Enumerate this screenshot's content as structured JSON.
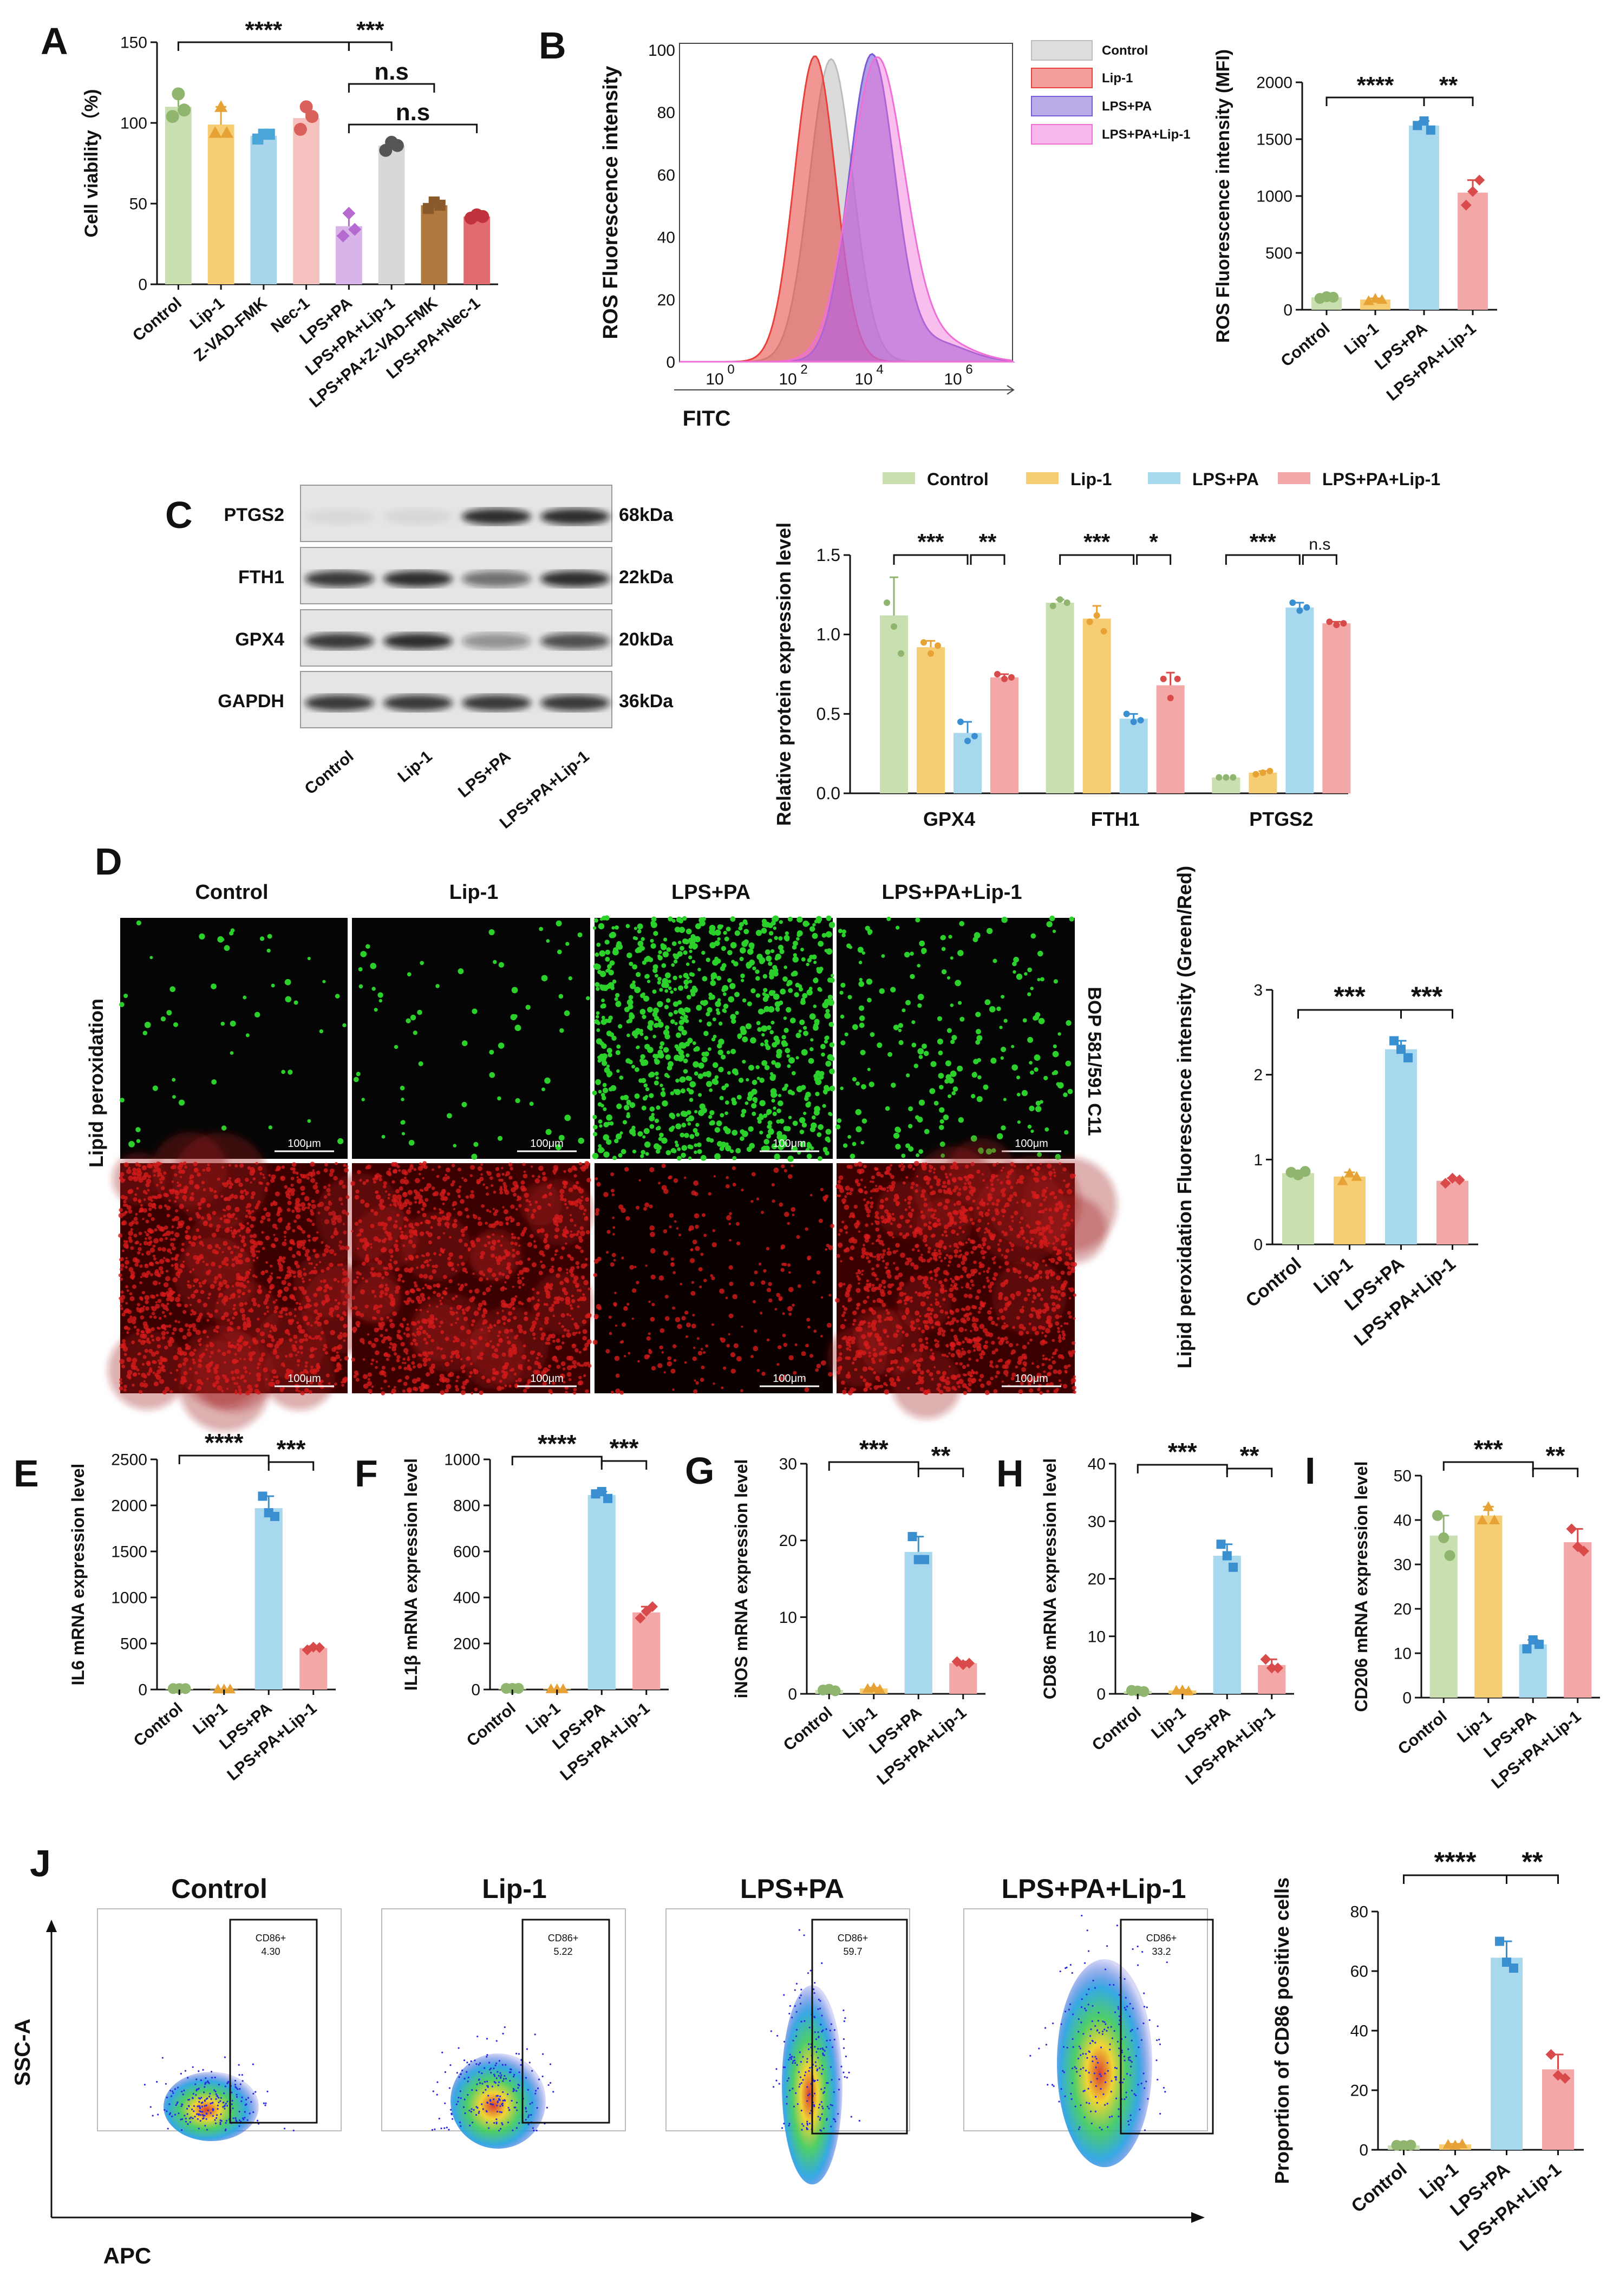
{
  "colors": {
    "control": "#c9dfb0",
    "control_dot": "#8fb56f",
    "lip1": "#f7cd73",
    "lip1_dot": "#e6a235",
    "lpspa": "#a8d8ee",
    "lpspa_dot": "#3a8fd0",
    "lpspalip": "#f4a7a7",
    "lpspalip_dot": "#d94b4b",
    "znec": "#a9d5ea",
    "nec": "#f6c2c0",
    "lip1_pos": "#d8d8d8",
    "zvad_pa": "#b07a3e",
    "nec_pa": "#e26b72",
    "hist_control": "#bdbdbd",
    "hist_lip1": "#e8403a",
    "hist_lpspa": "#7a5cd6",
    "hist_lpspalip": "#f06fd6",
    "green_fluor": "#2bd02b",
    "red_fluor": "#d61a1a"
  },
  "legend_c": [
    "Control",
    "Lip-1",
    "LPS+PA",
    "LPS+PA+Lip-1"
  ],
  "flow": {
    "titles": [
      "Control",
      "Lip-1",
      "LPS+PA",
      "LPS+PA+Lip-1"
    ],
    "gate_label": "CD86+",
    "values": [
      "4.30",
      "5.22",
      "59.7",
      "33.2"
    ],
    "ylabel": "SSC-A",
    "xlabel": "APC"
  },
  "micro": {
    "titles": [
      "Control",
      "Lip-1",
      "LPS+PA",
      "LPS+PA+Lip-1"
    ],
    "scale": "100μm",
    "side_left": "Lipid peroxidation",
    "side_right": "BOP 581/591 C11"
  },
  "blot": {
    "rows": [
      "PTGS2",
      "FTH1",
      "GPX4",
      "GAPDH"
    ],
    "kda": [
      "68kDa",
      "22kDa",
      "20kDa",
      "36kDa"
    ],
    "lanes": [
      "Control",
      "Lip-1",
      "LPS+PA",
      "LPS+PA+Lip-1"
    ]
  },
  "chart_data": [
    {
      "panel": "A",
      "type": "bar",
      "categories": [
        "Control",
        "Lip-1",
        "Z-VAD-FMK",
        "Nec-1",
        "LPS+PA",
        "LPS+PA+Lip-1",
        "LPS+PA+Z-VAD-FMK",
        "LPS+PA+Nec-1"
      ],
      "values": [
        110,
        99,
        92,
        103,
        36,
        86,
        49,
        42
      ],
      "points": [
        [
          104,
          118,
          108
        ],
        [
          94,
          110,
          94
        ],
        [
          90,
          93,
          93
        ],
        [
          96,
          110,
          104
        ],
        [
          30,
          44,
          34
        ],
        [
          83,
          88,
          86
        ],
        [
          47,
          51,
          49
        ],
        [
          41,
          43,
          42
        ]
      ],
      "ylabel": "Cell viability（%)",
      "ylim": [
        0,
        150
      ],
      "yticks": [
        0,
        50,
        100,
        150
      ],
      "sig": [
        {
          "from": 0,
          "to": 4,
          "label": "****"
        },
        {
          "from": 4,
          "to": 5,
          "label": "***"
        },
        {
          "from": 4,
          "to": 6,
          "label": "n.s"
        },
        {
          "from": 4,
          "to": 7,
          "label": "n.s"
        }
      ]
    },
    {
      "panel": "B-hist",
      "type": "area",
      "series": [
        {
          "name": "Control"
        },
        {
          "name": "Lip-1"
        },
        {
          "name": "LPS+PA"
        },
        {
          "name": "LPS+PA+Lip-1"
        }
      ],
      "ylabel": "ROS Fluorescence intensity",
      "xlabel": "FITC",
      "ylim": [
        0,
        100
      ],
      "yticks": [
        0,
        20,
        40,
        60,
        80,
        100
      ],
      "xticks": [
        "10^0",
        "10^2",
        "10^4",
        "10^6"
      ]
    },
    {
      "panel": "B",
      "type": "bar",
      "categories": [
        "Control",
        "Lip-1",
        "LPS+PA",
        "LPS+PA+Lip-1"
      ],
      "values": [
        110,
        90,
        1620,
        1030
      ],
      "points": [
        [
          100,
          115,
          110
        ],
        [
          80,
          100,
          90
        ],
        [
          1620,
          1660,
          1580
        ],
        [
          920,
          1040,
          1140
        ]
      ],
      "ylabel": "ROS Fluorescence intensity (MFI)",
      "ylim": [
        0,
        2000
      ],
      "yticks": [
        0,
        500,
        1000,
        1500,
        2000
      ],
      "sig": [
        {
          "from": 0,
          "to": 2,
          "label": "****"
        },
        {
          "from": 2,
          "to": 3,
          "label": "**"
        }
      ]
    },
    {
      "panel": "C",
      "type": "bar",
      "categories": [
        "GPX4",
        "FTH1",
        "PTGS2"
      ],
      "series": [
        {
          "name": "Control",
          "values": [
            1.12,
            1.2,
            0.1
          ],
          "points": [
            [
              1.2,
              1.05,
              0.88
            ],
            [
              1.18,
              1.22,
              1.2
            ],
            [
              0.1,
              0.1,
              0.1
            ]
          ]
        },
        {
          "name": "Lip-1",
          "values": [
            0.92,
            1.1,
            0.13
          ],
          "points": [
            [
              0.95,
              0.88,
              0.93
            ],
            [
              1.08,
              1.12,
              1.02
            ],
            [
              0.12,
              0.13,
              0.14
            ]
          ]
        },
        {
          "name": "LPS+PA",
          "values": [
            0.38,
            0.47,
            1.17
          ],
          "points": [
            [
              0.45,
              0.33,
              0.36
            ],
            [
              0.5,
              0.45,
              0.46
            ],
            [
              1.2,
              1.15,
              1.17
            ]
          ]
        },
        {
          "name": "LPS+PA+Lip-1",
          "values": [
            0.73,
            0.68,
            1.07
          ],
          "points": [
            [
              0.75,
              0.72,
              0.73
            ],
            [
              0.72,
              0.6,
              0.72
            ],
            [
              1.08,
              1.06,
              1.07
            ]
          ]
        }
      ],
      "ylabel": "Relative protein expression level",
      "ylim": [
        0,
        1.5
      ],
      "yticks": [
        0.0,
        0.5,
        1.0,
        1.5
      ],
      "sig": [
        [
          "***",
          "**"
        ],
        [
          "***",
          "*"
        ],
        [
          "***",
          "n.s"
        ]
      ]
    },
    {
      "panel": "D",
      "type": "bar",
      "categories": [
        "Control",
        "Lip-1",
        "LPS+PA",
        "LPS+PA+Lip-1"
      ],
      "values": [
        0.84,
        0.8,
        2.3,
        0.75
      ],
      "points": [
        [
          0.85,
          0.82,
          0.86
        ],
        [
          0.75,
          0.84,
          0.8
        ],
        [
          2.4,
          2.3,
          2.2
        ],
        [
          0.72,
          0.78,
          0.76
        ]
      ],
      "ylabel": "Lipid peroxidation Fluorescence intensity (Green/Red)",
      "ylim": [
        0,
        3
      ],
      "yticks": [
        0,
        1,
        2,
        3
      ],
      "sig": [
        {
          "from": 0,
          "to": 2,
          "label": "***"
        },
        {
          "from": 2,
          "to": 3,
          "label": "***"
        }
      ]
    },
    {
      "panel": "E",
      "type": "bar",
      "categories": [
        "Control",
        "Lip-1",
        "LPS+PA",
        "LPS+PA+Lip-1"
      ],
      "values": [
        10,
        5,
        1970,
        450
      ],
      "points": [
        [
          10,
          10,
          10
        ],
        [
          5,
          5,
          5
        ],
        [
          2100,
          1920,
          1880
        ],
        [
          430,
          460,
          455
        ]
      ],
      "ylabel": "IL6 mRNA expression level",
      "ylim": [
        0,
        2500
      ],
      "yticks": [
        0,
        500,
        1000,
        1500,
        2000,
        2500
      ],
      "sig": [
        {
          "from": 0,
          "to": 2,
          "label": "****"
        },
        {
          "from": 2,
          "to": 3,
          "label": "***"
        }
      ]
    },
    {
      "panel": "F",
      "type": "bar",
      "categories": [
        "Control",
        "Lip-1",
        "LPS+PA",
        "LPS+PA+Lip-1"
      ],
      "values": [
        5,
        3,
        845,
        335
      ],
      "points": [
        [
          5,
          5,
          5
        ],
        [
          3,
          3,
          3
        ],
        [
          850,
          860,
          830
        ],
        [
          310,
          340,
          360
        ]
      ],
      "ylabel": "IL1β mRNA expression level",
      "ylim": [
        0,
        1000
      ],
      "yticks": [
        0,
        200,
        400,
        600,
        800,
        1000
      ],
      "sig": [
        {
          "from": 0,
          "to": 2,
          "label": "****"
        },
        {
          "from": 2,
          "to": 3,
          "label": "***"
        }
      ]
    },
    {
      "panel": "G",
      "type": "bar",
      "categories": [
        "Control",
        "Lip-1",
        "LPS+PA",
        "LPS+PA+Lip-1"
      ],
      "values": [
        0.5,
        0.7,
        18.5,
        4.0
      ],
      "points": [
        [
          0.5,
          0.6,
          0.4
        ],
        [
          0.7,
          0.8,
          0.6
        ],
        [
          20.5,
          17.5,
          17.5
        ],
        [
          4.2,
          3.8,
          4.0
        ]
      ],
      "ylabel": "iNOS mRNA expression level",
      "ylim": [
        0,
        30
      ],
      "yticks": [
        0,
        10,
        20,
        30
      ],
      "sig": [
        {
          "from": 0,
          "to": 2,
          "label": "***"
        },
        {
          "from": 2,
          "to": 3,
          "label": "**"
        }
      ]
    },
    {
      "panel": "H",
      "type": "bar",
      "categories": [
        "Control",
        "Lip-1",
        "LPS+PA",
        "LPS+PA+Lip-1"
      ],
      "values": [
        0.5,
        0.6,
        24,
        5
      ],
      "points": [
        [
          0.6,
          0.5,
          0.4
        ],
        [
          0.6,
          0.7,
          0.5
        ],
        [
          26,
          24,
          22
        ],
        [
          6,
          4.5,
          4.5
        ]
      ],
      "ylabel": "CD86 mRNA expression level",
      "ylim": [
        0,
        40
      ],
      "yticks": [
        0,
        10,
        20,
        30,
        40
      ],
      "sig": [
        {
          "from": 0,
          "to": 2,
          "label": "***"
        },
        {
          "from": 2,
          "to": 3,
          "label": "**"
        }
      ]
    },
    {
      "panel": "I",
      "type": "bar",
      "categories": [
        "Control",
        "Lip-1",
        "LPS+PA",
        "LPS+PA+Lip-1"
      ],
      "values": [
        36.5,
        41,
        12,
        35
      ],
      "points": [
        [
          41,
          36,
          32
        ],
        [
          40,
          43,
          40
        ],
        [
          11,
          13,
          12
        ],
        [
          38,
          34,
          33
        ]
      ],
      "ylabel": "CD206 mRNA expression level",
      "ylim": [
        0,
        50
      ],
      "yticks": [
        0,
        10,
        20,
        30,
        40,
        50
      ],
      "sig": [
        {
          "from": 0,
          "to": 2,
          "label": "***"
        },
        {
          "from": 2,
          "to": 3,
          "label": "**"
        }
      ]
    },
    {
      "panel": "J",
      "type": "bar",
      "categories": [
        "Control",
        "Lip-1",
        "LPS+PA",
        "LPS+PA+Lip-1"
      ],
      "values": [
        1.5,
        1.8,
        64.5,
        27
      ],
      "points": [
        [
          1.5,
          1.4,
          1.6
        ],
        [
          1.8,
          1.6,
          2.0
        ],
        [
          70,
          63,
          61
        ],
        [
          32,
          25,
          24
        ]
      ],
      "ylabel": "Proportion of CD86 positive cells",
      "ylim": [
        0,
        80
      ],
      "yticks": [
        0,
        20,
        40,
        60,
        80
      ],
      "sig": [
        {
          "from": 0,
          "to": 2,
          "label": "****"
        },
        {
          "from": 2,
          "to": 3,
          "label": "**"
        }
      ]
    }
  ]
}
